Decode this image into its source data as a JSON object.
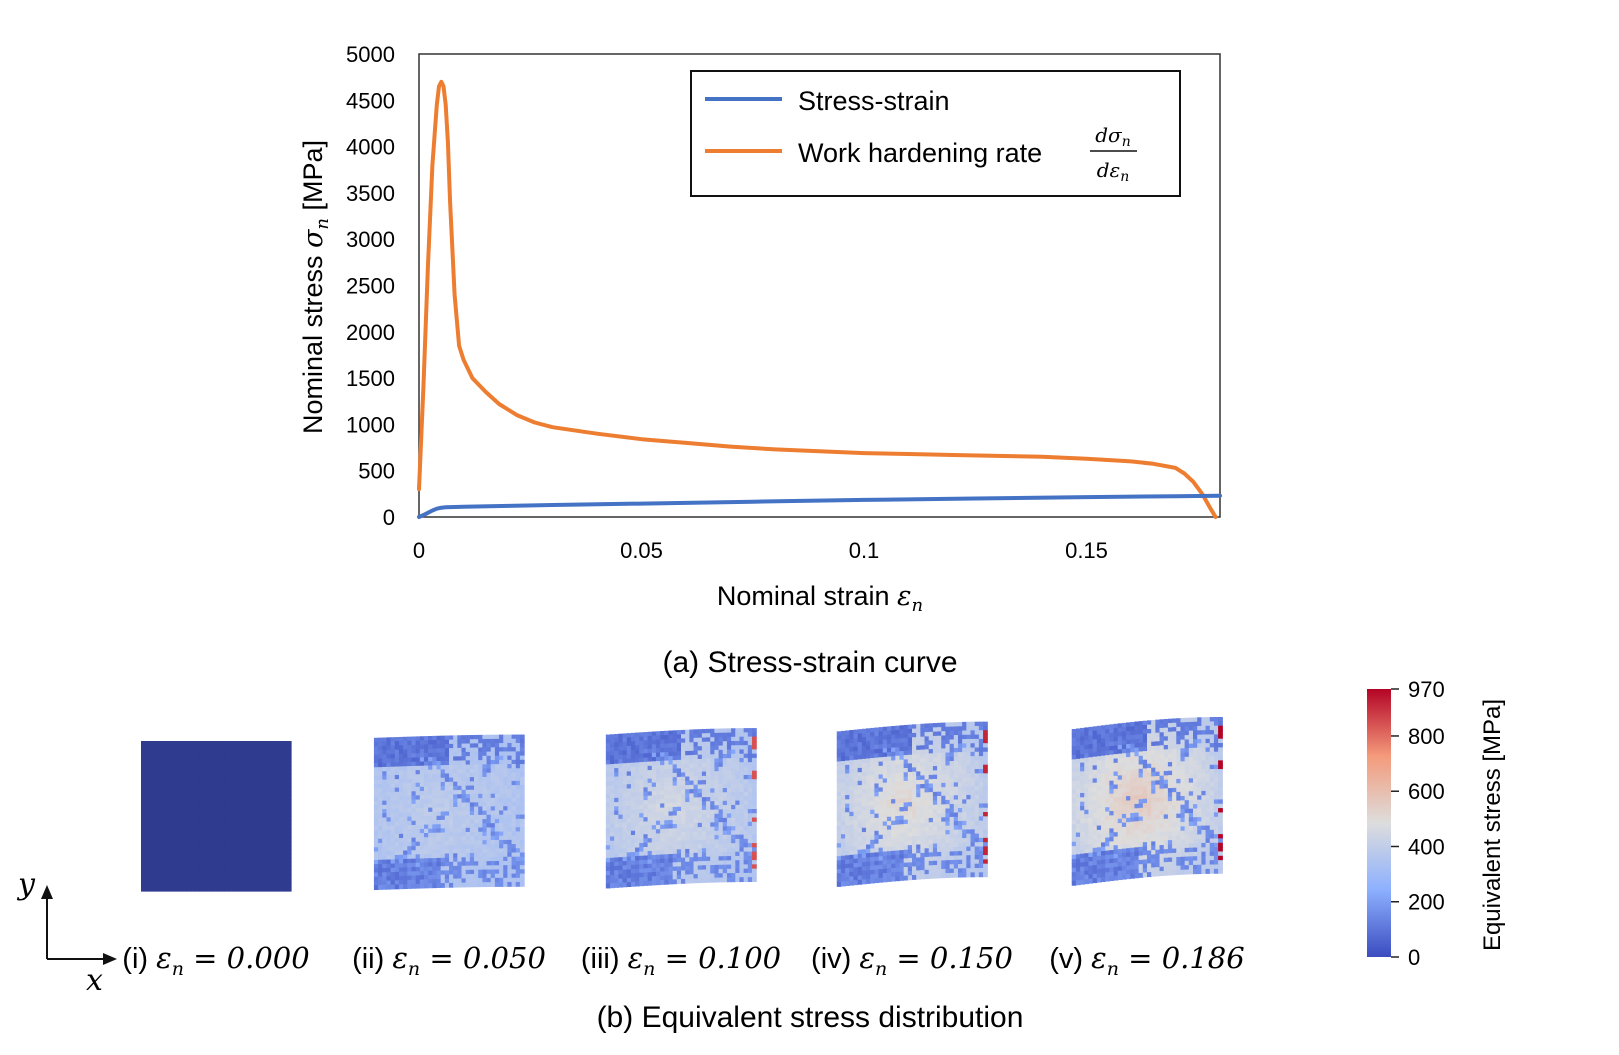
{
  "chart_data": [
    {
      "type": "line",
      "caption": "(a) Stress-strain curve",
      "xlabel_text": "Nominal strain ",
      "xlabel_symbol": "ε",
      "xlabel_sub": "n",
      "ylabel_text": "Nominal stress ",
      "ylabel_symbol": "σ",
      "ylabel_sub": "n",
      "ylabel_unit": " [MPa]",
      "xlim": [
        0,
        0.18
      ],
      "ylim": [
        0,
        5000
      ],
      "xticks": [
        0,
        0.05,
        0.1,
        0.15
      ],
      "xtick_labels": [
        "0",
        "0.05",
        "0.1",
        "0.15"
      ],
      "yticks": [
        0,
        500,
        1000,
        1500,
        2000,
        2500,
        3000,
        3500,
        4000,
        4500,
        5000
      ],
      "ytick_labels": [
        "0",
        "500",
        "1000",
        "1500",
        "2000",
        "2500",
        "3000",
        "3500",
        "4000",
        "4500",
        "5000"
      ],
      "grid": false,
      "legend_position": "top-right",
      "series": [
        {
          "name": "Stress-strain",
          "color": "#4472c4",
          "x": [
            0,
            0.001,
            0.002,
            0.003,
            0.004,
            0.005,
            0.006,
            0.008,
            0.01,
            0.02,
            0.03,
            0.05,
            0.075,
            0.1,
            0.125,
            0.15,
            0.17,
            0.18
          ],
          "y": [
            0,
            20,
            45,
            70,
            90,
            100,
            105,
            108,
            110,
            120,
            130,
            145,
            165,
            185,
            200,
            215,
            225,
            230
          ]
        },
        {
          "name": "Work hardening rate ",
          "legend_fraction_num_symbol": "dσ",
          "legend_fraction_num_sub": "n",
          "legend_fraction_den_symbol": "dε",
          "legend_fraction_den_sub": "n",
          "color": "#ed7d31",
          "x": [
            0,
            0.001,
            0.002,
            0.003,
            0.004,
            0.0045,
            0.005,
            0.0055,
            0.006,
            0.0065,
            0.007,
            0.008,
            0.009,
            0.01,
            0.012,
            0.015,
            0.018,
            0.022,
            0.026,
            0.03,
            0.04,
            0.05,
            0.06,
            0.07,
            0.08,
            0.09,
            0.1,
            0.11,
            0.12,
            0.13,
            0.14,
            0.15,
            0.16,
            0.165,
            0.17,
            0.172,
            0.174,
            0.176,
            0.178,
            0.179
          ],
          "y": [
            300,
            1400,
            2700,
            3800,
            4450,
            4650,
            4700,
            4650,
            4450,
            4050,
            3400,
            2400,
            1850,
            1700,
            1500,
            1350,
            1220,
            1100,
            1020,
            970,
            900,
            840,
            800,
            760,
            730,
            710,
            690,
            680,
            670,
            660,
            650,
            630,
            600,
            575,
            530,
            470,
            380,
            250,
            80,
            0
          ]
        }
      ]
    },
    {
      "type": "heatmap",
      "caption": "(b) Equivalent stress distribution",
      "colorbar": {
        "label": "Equivalent stress [MPa]",
        "range": [
          0,
          970
        ],
        "ticks": [
          0,
          200,
          400,
          600,
          800,
          970
        ],
        "tick_labels": [
          "0",
          "200",
          "400",
          "600",
          "800",
          "970"
        ],
        "colormap": "coolwarm",
        "colors": [
          "#3b4cc0",
          "#8db0fe",
          "#dddddd",
          "#f49a7b",
          "#b40426"
        ]
      },
      "axes_labels": {
        "x": "x",
        "y": "y"
      },
      "panels": [
        {
          "label_prefix": "(i) ",
          "label_symbol": "ε",
          "label_sub": "n",
          "label_value": " = 0.000",
          "strain": 0.0
        },
        {
          "label_prefix": "(ii) ",
          "label_symbol": "ε",
          "label_sub": "n",
          "label_value": " = 0.050",
          "strain": 0.05
        },
        {
          "label_prefix": "(iii) ",
          "label_symbol": "ε",
          "label_sub": "n",
          "label_value": " = 0.100",
          "strain": 0.1
        },
        {
          "label_prefix": "(iv) ",
          "label_symbol": "ε",
          "label_sub": "n",
          "label_value": " = 0.150",
          "strain": 0.15
        },
        {
          "label_prefix": "(v) ",
          "label_symbol": "ε",
          "label_sub": "n",
          "label_value": " = 0.186",
          "strain": 0.186
        }
      ]
    }
  ]
}
